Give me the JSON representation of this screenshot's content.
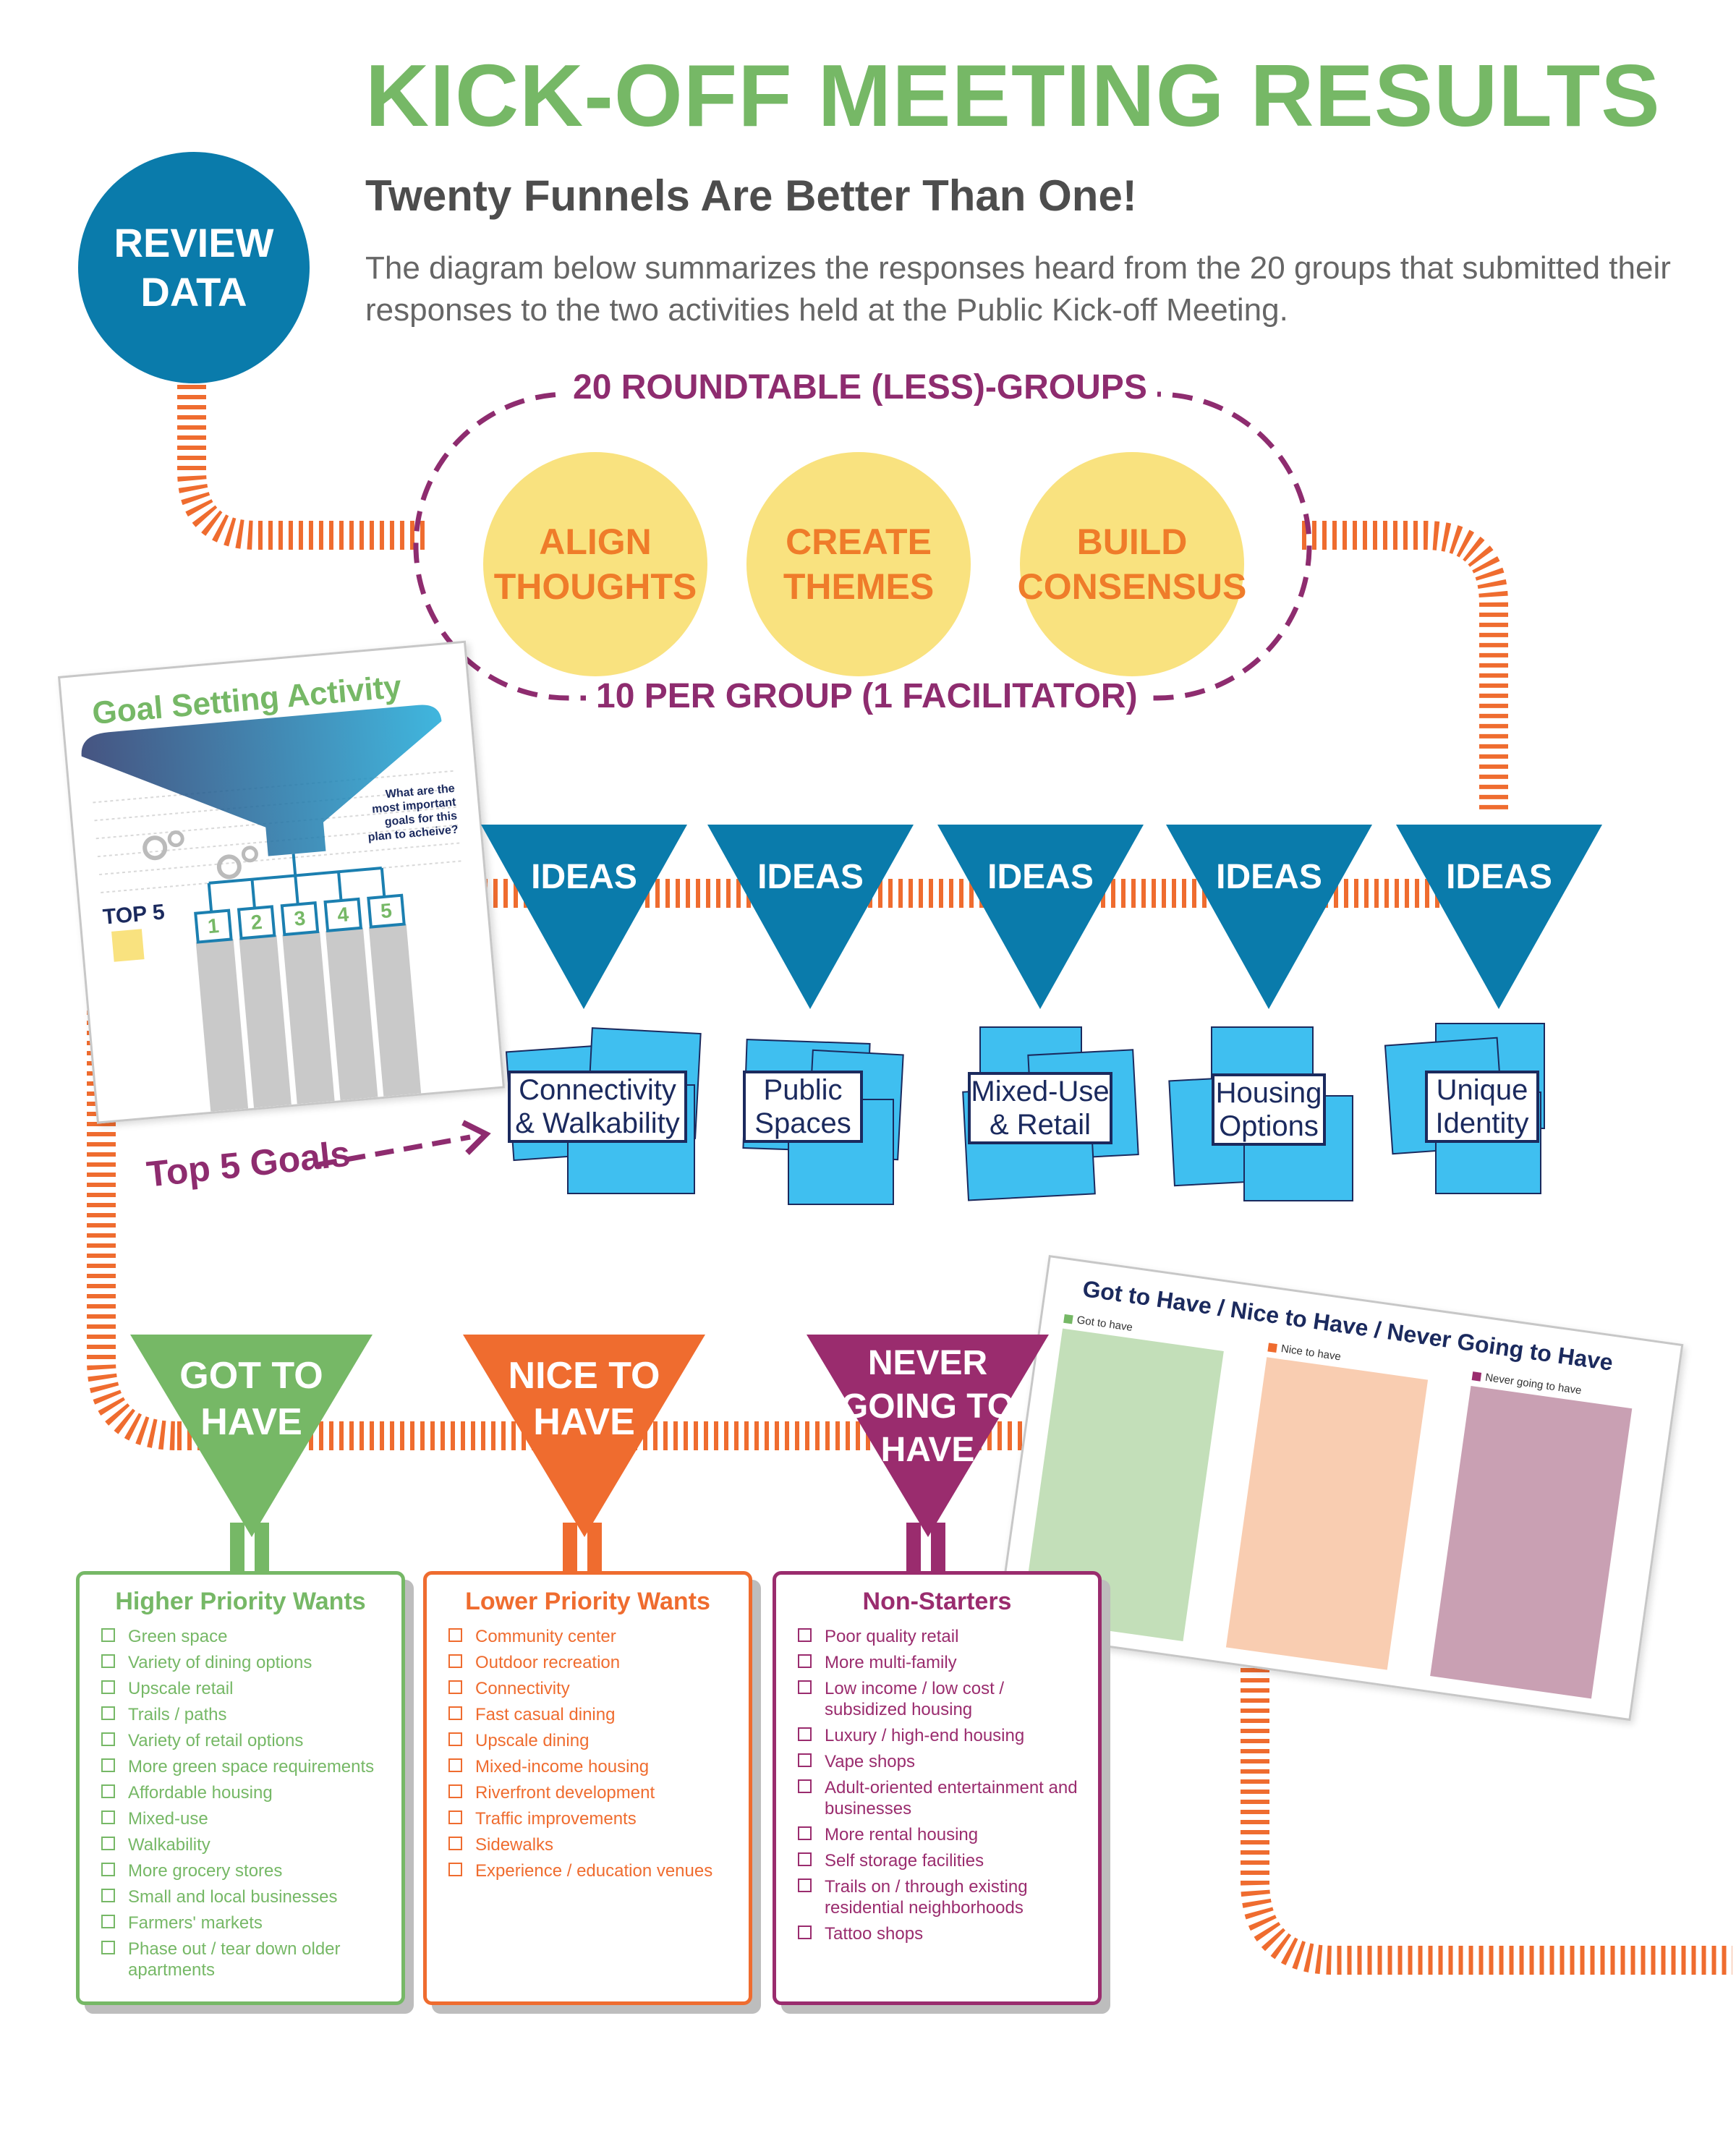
{
  "header": {
    "title": "KICK-OFF MEETING RESULTS",
    "subtitle": "Twenty Funnels Are Better Than One!",
    "description": "The diagram below summarizes the responses heard from the 20 groups that submitted their responses to the two activities held at the Public Kick-off Meeting."
  },
  "review_data": {
    "line1": "REVIEW",
    "line2": "DATA"
  },
  "groups": {
    "top_label": "20 ROUNDTABLE (LESS)-GROUPS",
    "bottom_label": "10 PER GROUP (1 FACILITATOR)",
    "circles": [
      {
        "line1": "ALIGN",
        "line2": "THOUGHTS"
      },
      {
        "line1": "CREATE",
        "line2": "THEMES"
      },
      {
        "line1": "BUILD",
        "line2": "CONSENSUS"
      }
    ]
  },
  "goal_sheet": {
    "title": "Goal Setting Activity",
    "question": "What are the most important goals for this plan to acheive?",
    "top5": "TOP 5",
    "slots": [
      "1",
      "2",
      "3",
      "4",
      "5"
    ]
  },
  "top5_goals_label": "Top 5 Goals",
  "ideas": [
    {
      "label": "IDEAS",
      "line1": "Connectivity",
      "line2": "& Walkability"
    },
    {
      "label": "IDEAS",
      "line1": "Public",
      "line2": "Spaces"
    },
    {
      "label": "IDEAS",
      "line1": "Mixed-Use",
      "line2": "& Retail"
    },
    {
      "label": "IDEAS",
      "line1": "Housing",
      "line2": "Options"
    },
    {
      "label": "IDEAS",
      "line1": "Unique",
      "line2": "Identity"
    }
  ],
  "funnels": [
    {
      "lines": [
        "GOT TO",
        "HAVE"
      ],
      "color": "#76b866"
    },
    {
      "lines": [
        "NICE TO",
        "HAVE"
      ],
      "color": "#ef6c2f"
    },
    {
      "lines": [
        "NEVER",
        "GOING TO",
        "HAVE"
      ],
      "color": "#9a2c6e"
    }
  ],
  "priority_sheet": {
    "title": "Got to Have / Nice to Have / Never Going to Have",
    "columns": [
      {
        "label": "Got to have",
        "color": "#c3dfb9",
        "mark": "#76b866"
      },
      {
        "label": "Nice to have",
        "color": "#f9cdb1",
        "mark": "#ef6c2f"
      },
      {
        "label": "Never going to have",
        "color": "#c9a0b3",
        "mark": "#9a2c6e"
      }
    ]
  },
  "lists": {
    "higher": {
      "title": "Higher Priority Wants",
      "color": "#76b866",
      "items": [
        "Green space",
        "Variety of dining options",
        "Upscale retail",
        "Trails / paths",
        "Variety of retail options",
        "More green space requirements",
        "Affordable housing",
        "Mixed-use",
        "Walkability",
        "More grocery stores",
        "Small and local businesses",
        "Farmers' markets",
        "Phase out / tear down older apartments"
      ]
    },
    "lower": {
      "title": "Lower Priority Wants",
      "color": "#ef6c2f",
      "items": [
        "Community center",
        "Outdoor recreation",
        "Connectivity",
        "Fast casual dining",
        "Upscale dining",
        "Mixed-income housing",
        "Riverfront development",
        "Traffic improvements",
        "Sidewalks",
        "Experience / education venues"
      ]
    },
    "non": {
      "title": "Non-Starters",
      "color": "#9a2c6e",
      "items": [
        "Poor quality retail",
        "More multi-family",
        "Low income / low cost / subsidized housing",
        "Luxury / high-end housing",
        "Vape shops",
        "Adult-oriented entertainment and businesses",
        "More rental housing",
        "Self storage facilities",
        "Trails on / through existing residential neighborhoods",
        "Tattoo shops"
      ]
    }
  },
  "colors": {
    "green": "#76b866",
    "blue": "#0a7bab",
    "orange": "#ef6c2f",
    "purple": "#8e2c6f",
    "yellow": "#f9e27f",
    "note": "#3fbff0",
    "navy": "#1b2a5e"
  }
}
